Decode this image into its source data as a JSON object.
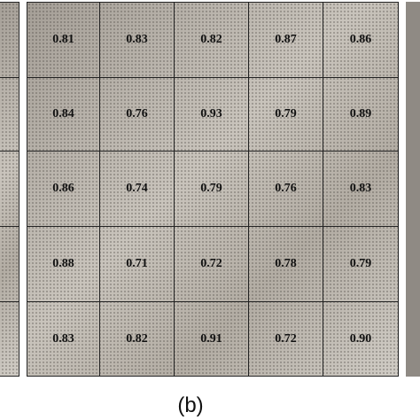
{
  "caption": "(b)",
  "grid": {
    "rows": [
      [
        "0.81",
        "0.83",
        "0.82",
        "0.87",
        "0.86"
      ],
      [
        "0.84",
        "0.76",
        "0.93",
        "0.79",
        "0.89"
      ],
      [
        "0.86",
        "0.74",
        "0.79",
        "0.76",
        "0.83"
      ],
      [
        "0.88",
        "0.71",
        "0.72",
        "0.78",
        "0.79"
      ],
      [
        "0.83",
        "0.82",
        "0.91",
        "0.72",
        "0.90"
      ]
    ]
  }
}
